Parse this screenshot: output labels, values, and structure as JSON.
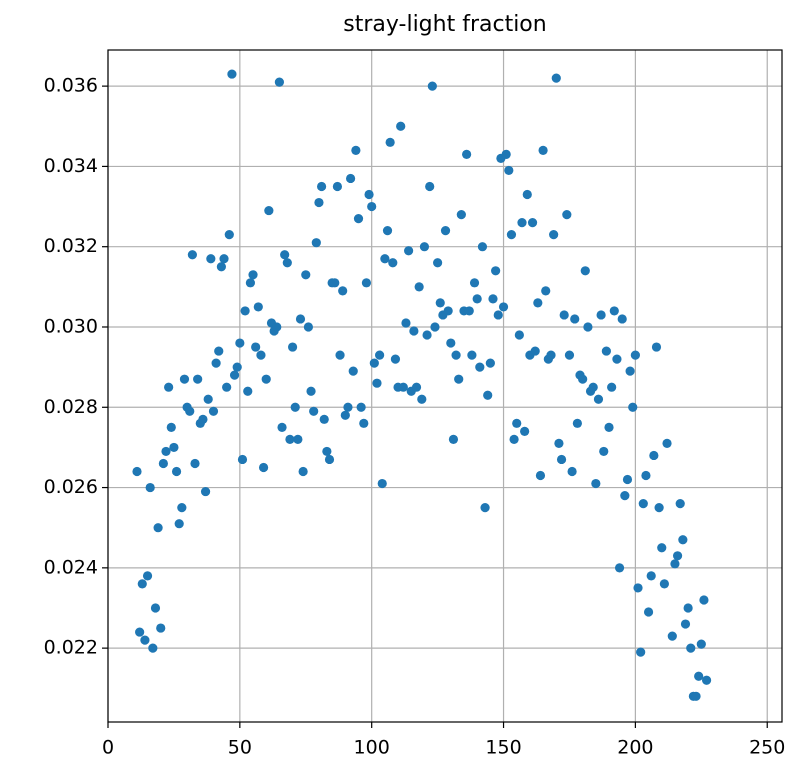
{
  "chart_data": {
    "type": "scatter",
    "title": "stray-light fraction",
    "color": "#1f77b4",
    "grid": true,
    "xlim": [
      0,
      255.6
    ],
    "ylim": [
      0.02016,
      0.0369
    ],
    "xticks": [
      0,
      50,
      100,
      150,
      200,
      250
    ],
    "yticks": [
      0.022,
      0.024,
      0.026,
      0.028,
      {
        "value": 0.03,
        "label": "0.030"
      },
      0.032,
      0.034,
      0.036
    ],
    "x": [
      11,
      12,
      13,
      14,
      15,
      16,
      17,
      18,
      19,
      20,
      21,
      22,
      23,
      24,
      25,
      26,
      27,
      28,
      29,
      30,
      31,
      32,
      33,
      34,
      35,
      36,
      37,
      38,
      39,
      40,
      41,
      42,
      43,
      44,
      45,
      46,
      47,
      48,
      49,
      50,
      51,
      52,
      53,
      54,
      55,
      56,
      57,
      58,
      59,
      60,
      61,
      62,
      63,
      64,
      65,
      66,
      67,
      68,
      69,
      70,
      71,
      72,
      73,
      74,
      75,
      76,
      77,
      78,
      79,
      80,
      81,
      82,
      83,
      84,
      85,
      86,
      87,
      88,
      89,
      90,
      91,
      92,
      93,
      94,
      95,
      96,
      97,
      98,
      99,
      100,
      101,
      102,
      103,
      104,
      105,
      106,
      107,
      108,
      109,
      110,
      111,
      112,
      113,
      114,
      115,
      116,
      117,
      118,
      119,
      120,
      121,
      122,
      123,
      124,
      125,
      126,
      127,
      128,
      129,
      130,
      131,
      132,
      133,
      134,
      135,
      136,
      137,
      138,
      139,
      140,
      141,
      142,
      143,
      144,
      145,
      146,
      147,
      148,
      149,
      150,
      151,
      152,
      153,
      154,
      155,
      156,
      157,
      158,
      159,
      160,
      161,
      162,
      163,
      164,
      165,
      166,
      167,
      168,
      169,
      170,
      171,
      172,
      173,
      174,
      175,
      176,
      177,
      178,
      179,
      180,
      181,
      182,
      183,
      184,
      185,
      186,
      187,
      188,
      189,
      190,
      191,
      192,
      193,
      194,
      195,
      196,
      197,
      198,
      199,
      200,
      201,
      202,
      203,
      204,
      205,
      206,
      207,
      208,
      209,
      210,
      211,
      212,
      214,
      215,
      216,
      217,
      218,
      219,
      220,
      221,
      222,
      223,
      224,
      225,
      226,
      227
    ],
    "values": [
      0.0264,
      0.0224,
      0.0236,
      0.0222,
      0.0238,
      0.026,
      0.022,
      0.023,
      0.025,
      0.0225,
      0.0266,
      0.0269,
      0.0285,
      0.0275,
      0.027,
      0.0264,
      0.0251,
      0.0255,
      0.0287,
      0.028,
      0.0279,
      0.0318,
      0.0266,
      0.0287,
      0.0276,
      0.0277,
      0.0259,
      0.0282,
      0.0317,
      0.0279,
      0.0291,
      0.0294,
      0.0315,
      0.0317,
      0.0285,
      0.0323,
      0.0363,
      0.0288,
      0.029,
      0.0296,
      0.0267,
      0.0304,
      0.0284,
      0.0311,
      0.0313,
      0.0295,
      0.0305,
      0.0293,
      0.0265,
      0.0287,
      0.0329,
      0.0301,
      0.0299,
      0.03,
      0.0361,
      0.0275,
      0.0318,
      0.0316,
      0.0272,
      0.0295,
      0.028,
      0.0272,
      0.0302,
      0.0264,
      0.0313,
      0.03,
      0.0284,
      0.0279,
      0.0321,
      0.0331,
      0.0335,
      0.0277,
      0.0269,
      0.0267,
      0.0311,
      0.0311,
      0.0335,
      0.0293,
      0.0309,
      0.0278,
      0.028,
      0.0337,
      0.0289,
      0.0344,
      0.0327,
      0.028,
      0.0276,
      0.0311,
      0.0333,
      0.033,
      0.0291,
      0.0286,
      0.0293,
      0.0261,
      0.0317,
      0.0324,
      0.0346,
      0.0316,
      0.0292,
      0.0285,
      0.035,
      0.0285,
      0.0301,
      0.0319,
      0.0284,
      0.0299,
      0.0285,
      0.031,
      0.0282,
      0.032,
      0.0298,
      0.0335,
      0.036,
      0.03,
      0.0316,
      0.0306,
      0.0303,
      0.0324,
      0.0304,
      0.0296,
      0.0272,
      0.0293,
      0.0287,
      0.0328,
      0.0304,
      0.0343,
      0.0304,
      0.0293,
      0.0311,
      0.0307,
      0.029,
      0.032,
      0.0255,
      0.0283,
      0.0291,
      0.0307,
      0.0314,
      0.0303,
      0.0342,
      0.0305,
      0.0343,
      0.0339,
      0.0323,
      0.0272,
      0.0276,
      0.0298,
      0.0326,
      0.0274,
      0.0333,
      0.0293,
      0.0326,
      0.0294,
      0.0306,
      0.0263,
      0.0344,
      0.0309,
      0.0292,
      0.0293,
      0.0323,
      0.0362,
      0.0271,
      0.0267,
      0.0303,
      0.0328,
      0.0293,
      0.0264,
      0.0302,
      0.0276,
      0.0288,
      0.0287,
      0.0314,
      0.03,
      0.0284,
      0.0285,
      0.0261,
      0.0282,
      0.0303,
      0.0269,
      0.0294,
      0.0275,
      0.0285,
      0.0304,
      0.0292,
      0.024,
      0.0302,
      0.0258,
      0.0262,
      0.0289,
      0.028,
      0.0293,
      0.0235,
      0.0219,
      0.0256,
      0.0263,
      0.0229,
      0.0238,
      0.0268,
      0.0295,
      0.0255,
      0.0245,
      0.0236,
      0.0271,
      0.0223,
      0.0241,
      0.0243,
      0.0256,
      0.0247,
      0.0226,
      0.023,
      0.022,
      0.0208,
      0.0208,
      0.0213,
      0.0221,
      0.0232,
      0.0212
    ]
  }
}
